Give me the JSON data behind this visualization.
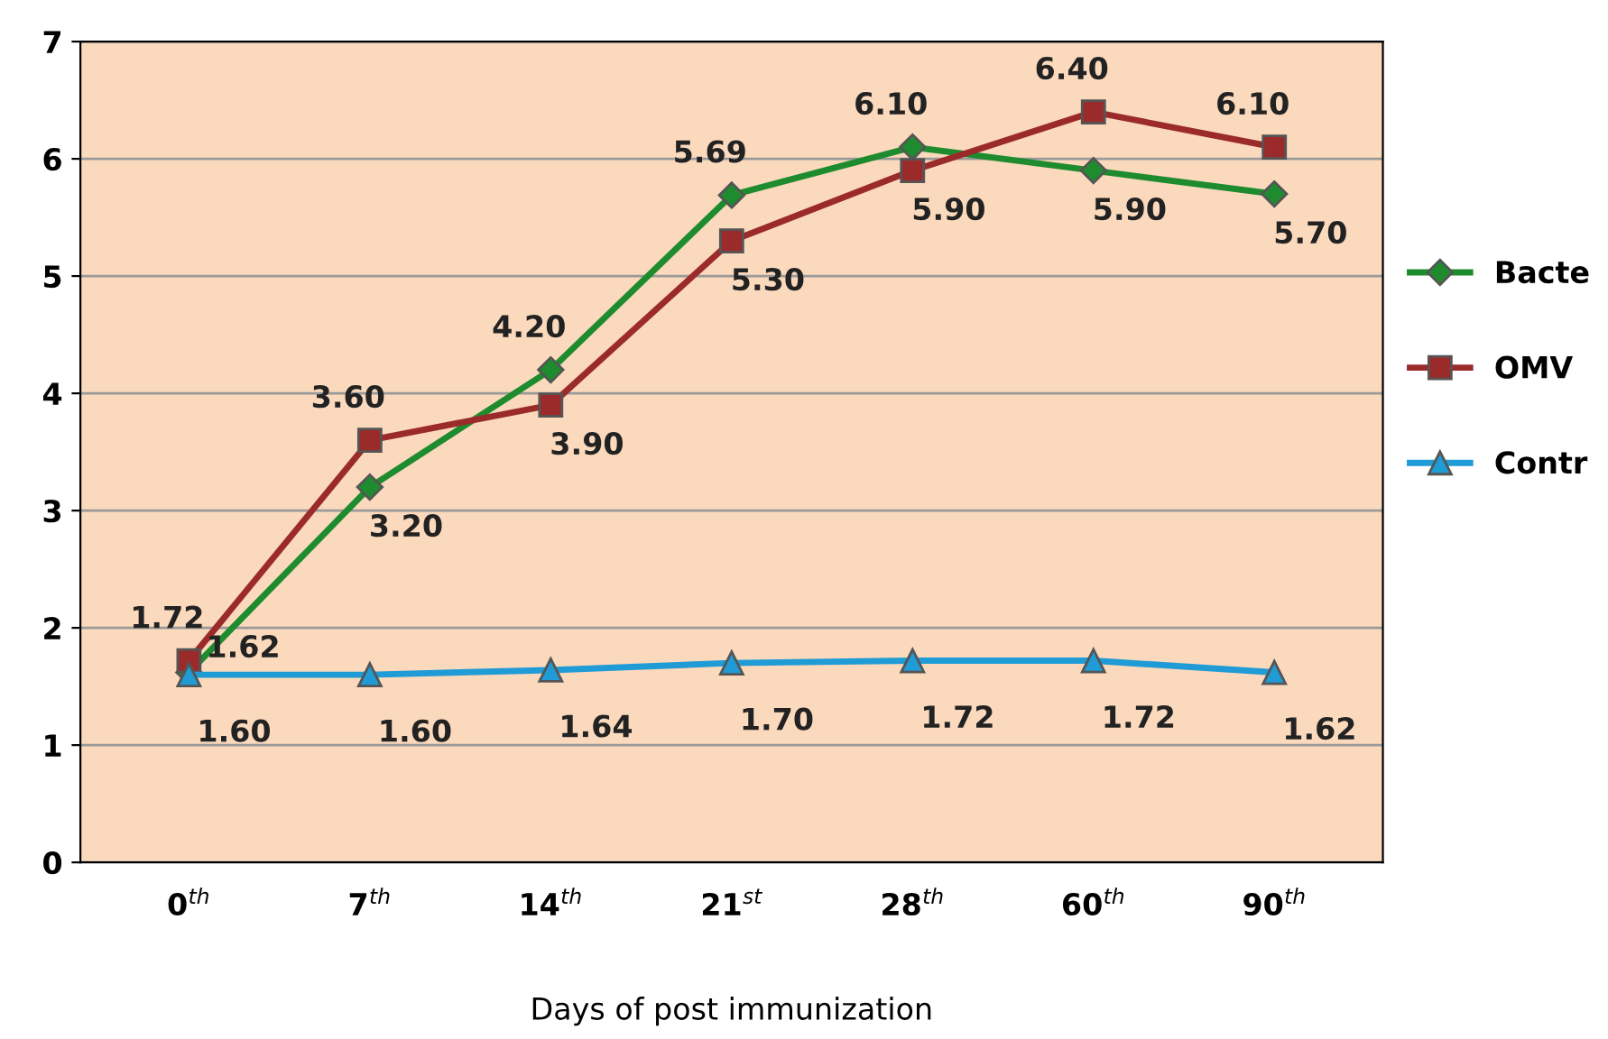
{
  "chart_data": {
    "type": "line",
    "xlabel": "Days of post immunization",
    "categories": [
      "0$^{th}$",
      "7$^{th}$",
      "14$^{th}$",
      "21$^{st}$",
      "28$^{th}$",
      "60$^{th}$",
      "90$^{th}$"
    ],
    "series": [
      {
        "name": "Bacte",
        "color": "#1e8c2e",
        "marker": "diamond",
        "values": [
          1.62,
          3.2,
          4.2,
          5.69,
          6.1,
          5.9,
          5.7
        ],
        "value_labels": [
          "1.62",
          "3.20",
          "4.20",
          "5.69",
          "6.10",
          "5.90",
          "5.70"
        ]
      },
      {
        "name": "OMV",
        "color": "#9b2b2b",
        "marker": "square",
        "values": [
          1.72,
          3.6,
          3.9,
          5.3,
          5.9,
          6.4,
          6.1
        ],
        "value_labels": [
          "1.72",
          "3.60",
          "3.90",
          "5.30",
          "5.90",
          "6.40",
          "6.10"
        ]
      },
      {
        "name": "Contr",
        "color": "#1f9bd6",
        "marker": "triangle",
        "values": [
          1.6,
          1.6,
          1.64,
          1.7,
          1.72,
          1.72,
          1.62
        ],
        "value_labels": [
          "1.60",
          "1.60",
          "1.64",
          "1.70",
          "1.72",
          "1.72",
          "1.62"
        ]
      }
    ],
    "ylim": [
      0,
      7
    ],
    "yticks": [
      0,
      1,
      2,
      3,
      4,
      5,
      6,
      7
    ],
    "grid": "y",
    "legend": "right"
  }
}
